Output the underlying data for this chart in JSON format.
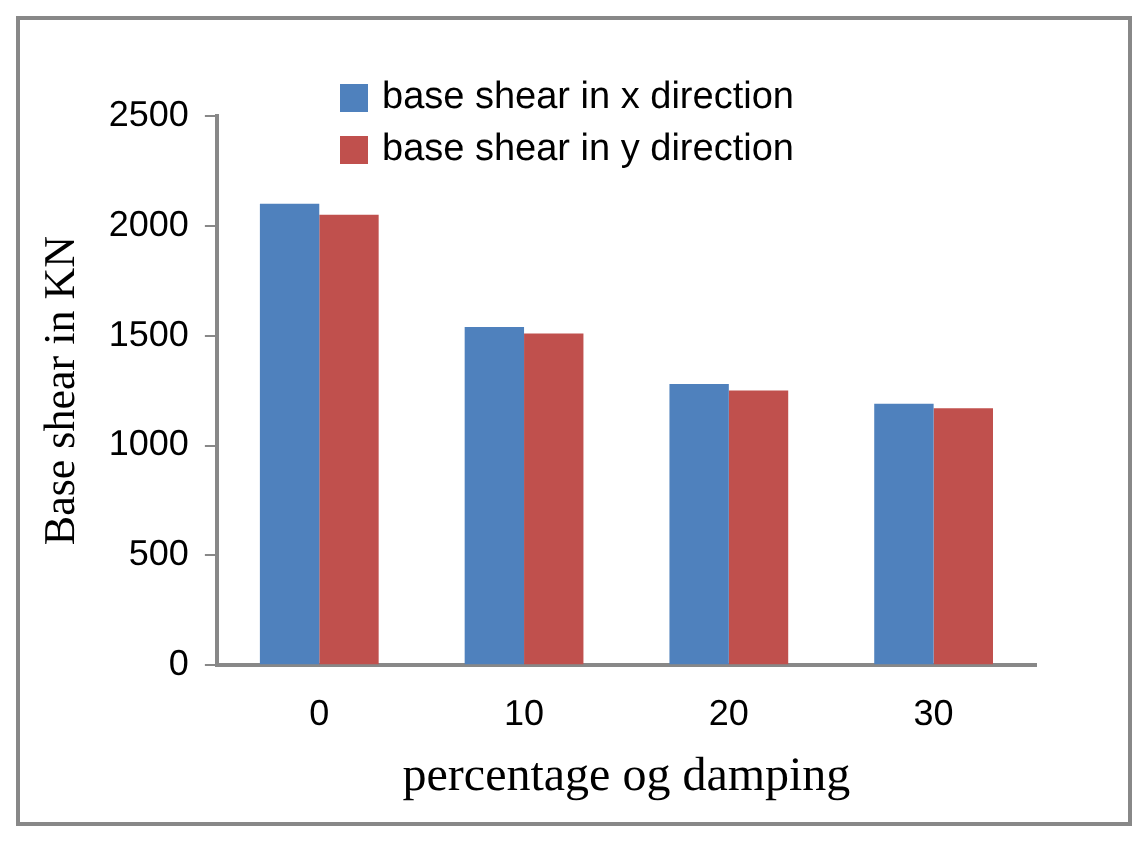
{
  "chart_data": {
    "type": "bar",
    "xlabel": "percentage og damping",
    "ylabel": "Base shear in KN",
    "categories": [
      "0",
      "10",
      "20",
      "30"
    ],
    "series": [
      {
        "name": "base shear in x direction",
        "color": "#4f81bd",
        "values": [
          2100,
          1540,
          1280,
          1190
        ]
      },
      {
        "name": "base shear in y direction",
        "color": "#c0504d",
        "values": [
          2050,
          1510,
          1250,
          1170
        ]
      }
    ],
    "ylim": [
      0,
      2500
    ],
    "yticks": [
      0,
      500,
      1000,
      1500,
      2000,
      2500
    ],
    "grid": false,
    "legend": "top left"
  }
}
